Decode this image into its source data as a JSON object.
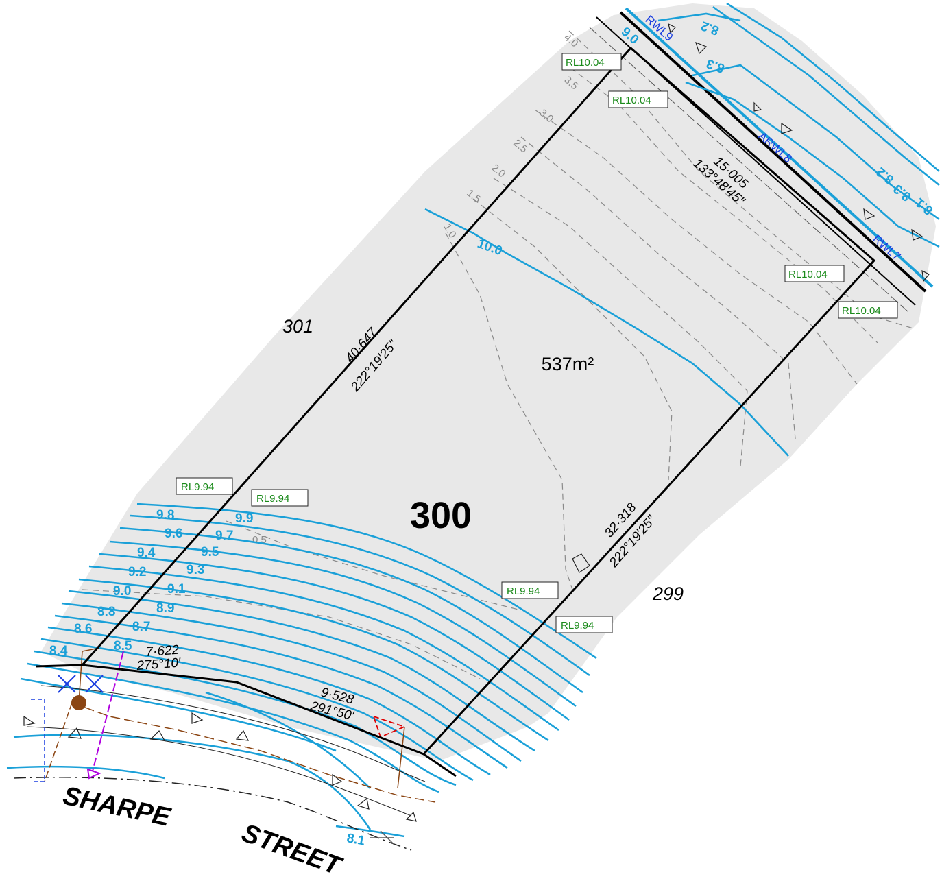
{
  "lot": {
    "number": "300",
    "area": "537m²"
  },
  "neighbours": {
    "left": "301",
    "right": "299"
  },
  "street": {
    "word1": "SHARPE",
    "word2": "STREET"
  },
  "dimensions": {
    "left_length": "40·647",
    "left_bearing": "222°19′25″",
    "right_length": "32·318",
    "right_bearing": "222°19′25″",
    "rear_length": "15·005",
    "rear_bearing": "133°48′45″",
    "front1_length": "7·622",
    "front1_bearing": "275°10′",
    "front2_length": "9·528",
    "front2_bearing": "291°50′"
  },
  "rl_labels": {
    "rl1": "RL10.04",
    "rl2": "RL10.04",
    "rl3": "RL10.04",
    "rl4": "RL10.04",
    "rl5": "RL9.94",
    "rl6": "RL9.94",
    "rl7": "RL9.94",
    "rl8": "RL9.94"
  },
  "contour_labels": {
    "c100": "10.0",
    "c99": "9.9",
    "c98": "9.8",
    "c97": "9.7",
    "c96": "9.6",
    "c95": "9.5",
    "c94": "9.4",
    "c93": "9.3",
    "c92": "9.2",
    "c91": "9.1",
    "c90": "9.0",
    "c89": "8.9",
    "c88": "8.8",
    "c87": "8.7",
    "c86": "8.6",
    "c85": "8.5",
    "c84": "8.4",
    "c81": "8.1",
    "c83a": "8.3",
    "c82a": "8.2",
    "c83b": "8.3",
    "c82b": "8.2",
    "c81b": "8.1"
  },
  "grey_contour_labels": {
    "g40": "4.0",
    "g35": "3.5",
    "g30": "3.0",
    "g25": "2.5",
    "g20": "2.0",
    "g15": "1.5",
    "g10": "1.0",
    "g05": "0.5"
  },
  "wall_labels": {
    "w1": "RWL9",
    "w2": "ARWL8",
    "w3": "RWL7",
    "w4": "9.0"
  },
  "colors": {
    "contour": "#1aa0d8",
    "rl_text": "#1a8a1a",
    "wall_text": "#1a3ee0",
    "lot_fill": "#e8e8e8",
    "sewer": "#8b4513",
    "stormwater": "#b000e0"
  }
}
